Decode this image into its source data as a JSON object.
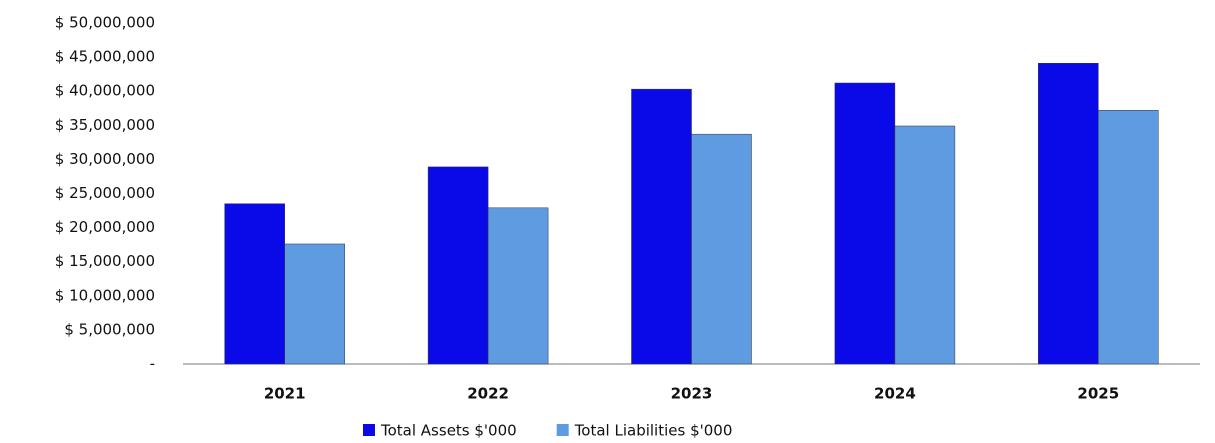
{
  "chart_data": {
    "type": "bar",
    "categories": [
      "2021",
      "2022",
      "2023",
      "2024",
      "2025"
    ],
    "series": [
      {
        "name": "Total Assets $'000",
        "color": "#0a0ae8",
        "values": [
          23500000,
          28900000,
          40300000,
          41200000,
          44100000
        ]
      },
      {
        "name": "Total Liabilities $'000",
        "color": "#5f9be0",
        "values": [
          17600000,
          22900000,
          33700000,
          34900000,
          37200000
        ]
      }
    ],
    "ylim": [
      0,
      50000000
    ],
    "yticks": [
      {
        "value": 0,
        "label": "-"
      },
      {
        "value": 5000000,
        "label": "$ 5,000,000"
      },
      {
        "value": 10000000,
        "label": "$ 10,000,000"
      },
      {
        "value": 15000000,
        "label": "$ 15,000,000"
      },
      {
        "value": 20000000,
        "label": "$ 20,000,000"
      },
      {
        "value": 25000000,
        "label": "$ 25,000,000"
      },
      {
        "value": 30000000,
        "label": "$ 30,000,000"
      },
      {
        "value": 35000000,
        "label": "$ 35,000,000"
      },
      {
        "value": 40000000,
        "label": "$ 40,000,000"
      },
      {
        "value": 45000000,
        "label": "$ 45,000,000"
      },
      {
        "value": 50000000,
        "label": "$ 50,000,000"
      }
    ],
    "grid": false,
    "legend": "bottom"
  }
}
